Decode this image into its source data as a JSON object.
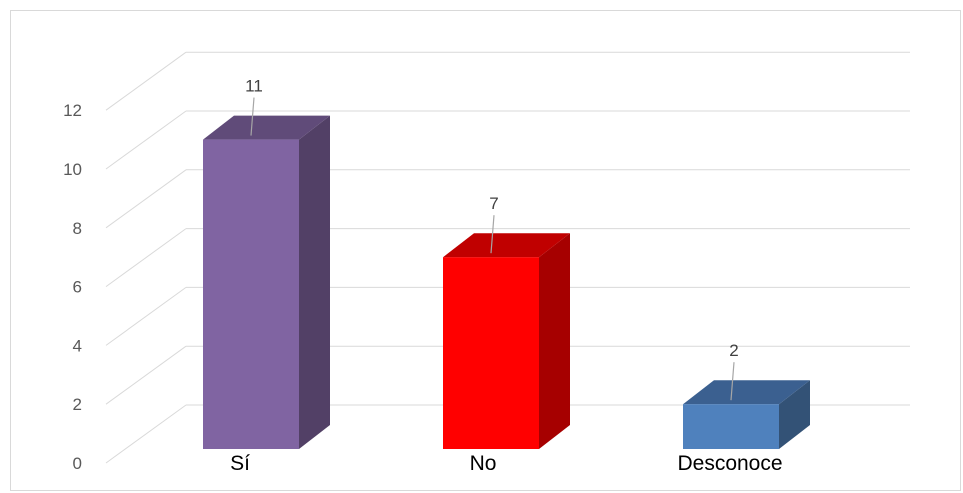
{
  "chart_data": {
    "type": "bar",
    "categories": [
      "Sí",
      "No",
      "Desconoce"
    ],
    "values": [
      11,
      7,
      2
    ],
    "data_labels": [
      "11",
      "7",
      "2"
    ],
    "title": "",
    "xlabel": "",
    "ylabel": "",
    "ylim": [
      0,
      12
    ],
    "yticks": [
      "0",
      "2",
      "4",
      "6",
      "8",
      "10",
      "12"
    ],
    "grid": true,
    "legend": "none",
    "style": "3d-column",
    "colors": {
      "front": [
        "#8064a2",
        "#ff0000",
        "#4f81bd"
      ],
      "side": [
        "#524066",
        "#a60000",
        "#335276"
      ],
      "top": [
        "#604b79",
        "#c00000",
        "#3b6090"
      ],
      "grid": "#d9d9d9",
      "leader": "#a6a6a6"
    }
  }
}
